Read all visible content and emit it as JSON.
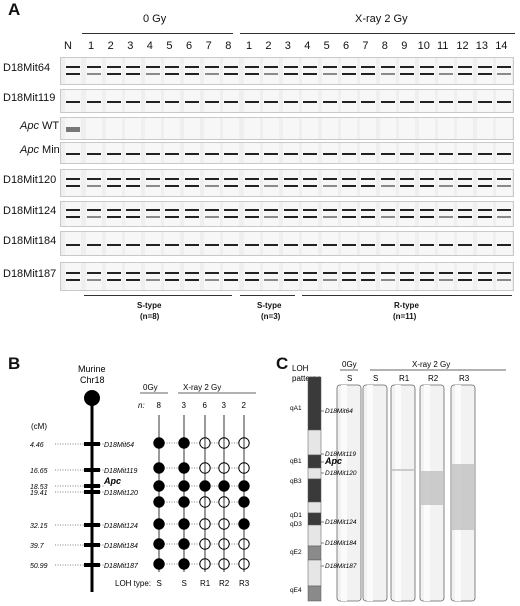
{
  "panelA": {
    "letter": "A",
    "group_0gy": "0 Gy",
    "group_xray": "X-ray 2 Gy",
    "lane_n": "N",
    "lanes_0gy": [
      "1",
      "2",
      "3",
      "4",
      "5",
      "6",
      "7",
      "8"
    ],
    "lanes_xray": [
      "1",
      "2",
      "3",
      "4",
      "5",
      "6",
      "7",
      "8",
      "9",
      "10",
      "11",
      "12",
      "13",
      "14"
    ],
    "markers": [
      {
        "pre": "",
        "name": "D18Mit64"
      },
      {
        "pre": "",
        "name": "D18Mit119"
      },
      {
        "pre": "Apc",
        "name": " WT"
      },
      {
        "pre": "Apc",
        "name": " Min"
      },
      {
        "pre": "",
        "name": "D18Mit120"
      },
      {
        "pre": "",
        "name": "D18Mit124"
      },
      {
        "pre": "",
        "name": "D18Mit184"
      },
      {
        "pre": "",
        "name": "D18Mit187"
      }
    ],
    "types": [
      {
        "label": "S-type",
        "n": "(n=8)"
      },
      {
        "label": "S-type",
        "n": "(n=3)"
      },
      {
        "label": "R-type",
        "n": "(n=11)"
      }
    ]
  },
  "panelB": {
    "letter": "B",
    "chr_label_1": "Murine",
    "chr_label_2": "Chr18",
    "cm_label": "(cM)",
    "loci": [
      {
        "cm": "4.46",
        "name": "D18Mit64"
      },
      {
        "cm": "16.65",
        "name": "D18Mit119"
      },
      {
        "cm": "18.53",
        "name": "Apc"
      },
      {
        "cm": "19.41",
        "name": "D18Mit120"
      },
      {
        "cm": "32.15",
        "name": "D18Mit124"
      },
      {
        "cm": "39.7",
        "name": "D18Mit184"
      },
      {
        "cm": "50.99",
        "name": "D18Mit187"
      }
    ],
    "head_0gy": "0Gy",
    "head_xray": "X-ray 2 Gy",
    "n_label": "n:",
    "n_values": [
      "8",
      "3",
      "6",
      "3",
      "2"
    ],
    "loh_label": "LOH type:",
    "loh_types": [
      "S",
      "S",
      "R1",
      "R2",
      "R3"
    ],
    "circles": [
      [
        "f",
        "f",
        "o",
        "o",
        "o"
      ],
      [
        "f",
        "f",
        "o",
        "o",
        "o"
      ],
      [
        "f",
        "f",
        "f",
        "f",
        "f"
      ],
      [
        "f",
        "f",
        "o",
        "o",
        "f"
      ],
      [
        "f",
        "f",
        "o",
        "o",
        "f"
      ],
      [
        "f",
        "f",
        "o",
        "o",
        "o"
      ],
      [
        "f",
        "f",
        "o",
        "o",
        "o"
      ]
    ]
  },
  "panelC": {
    "letter": "C",
    "loh_label_1": "LOH",
    "loh_label_2": "patterns",
    "head_0gy": "0Gy",
    "head_xray": "X-ray 2 Gy",
    "cols": [
      "S",
      "S",
      "R1",
      "R2",
      "R3"
    ],
    "bands": [
      "qA1",
      "qB1",
      "qB3",
      "qD1",
      "qD3",
      "qE2",
      "qE4"
    ],
    "markers": [
      "D18Mit64",
      "D18Mit119",
      "Apc",
      "D18Mit120",
      "D18Mit124",
      "D18Mit184",
      "D18Mit187"
    ]
  }
}
